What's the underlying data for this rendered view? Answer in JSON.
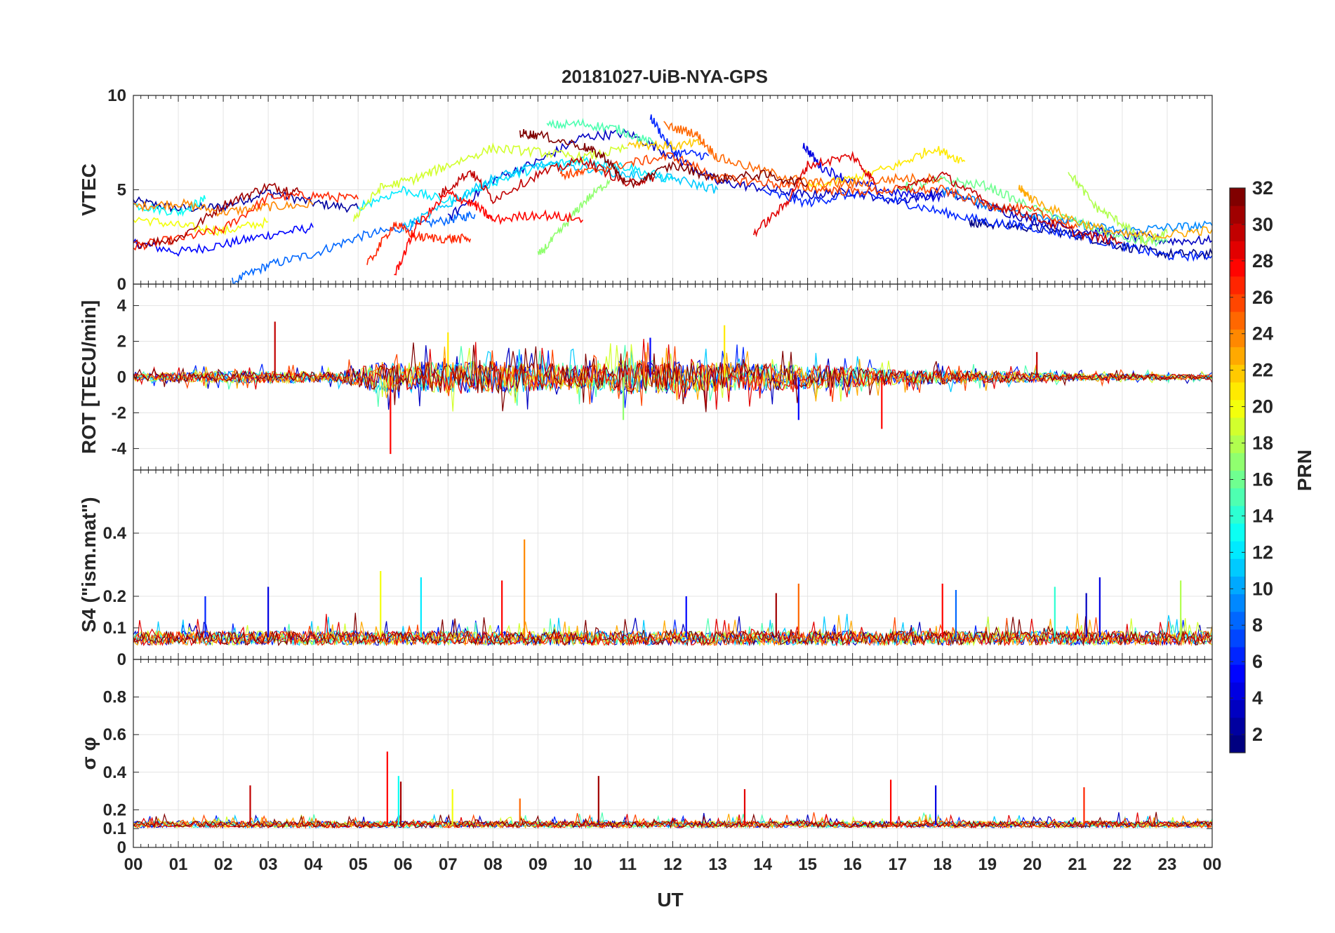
{
  "chart_data": {
    "type": "line",
    "title": "20181027-UiB-NYA-GPS",
    "xlabel": "UT",
    "xlim": [
      0,
      24
    ],
    "x_tick_labels": [
      "00",
      "01",
      "02",
      "03",
      "04",
      "05",
      "06",
      "07",
      "08",
      "09",
      "10",
      "11",
      "12",
      "13",
      "14",
      "15",
      "16",
      "17",
      "18",
      "19",
      "20",
      "21",
      "22",
      "23",
      "00"
    ],
    "grid": true,
    "colorbar": {
      "label": "PRN",
      "range": [
        1,
        32
      ],
      "ticks": [
        "2",
        "4",
        "6",
        "8",
        "10",
        "12",
        "14",
        "16",
        "18",
        "20",
        "22",
        "24",
        "26",
        "28",
        "30",
        "32"
      ],
      "colormap": [
        "#00008f",
        "#0000ff",
        "#0080ff",
        "#00ffff",
        "#80ff80",
        "#ffff00",
        "#ff8000",
        "#ff0000",
        "#800000"
      ]
    },
    "panels": [
      {
        "ylabel": "VTEC",
        "ylim": [
          0,
          10
        ],
        "ytick_values": [
          0,
          5,
          10
        ],
        "ytick_labels": [
          "0",
          "5",
          "10"
        ],
        "series_note": "VTEC tracks for GPS satellites, colored by PRN",
        "tracks": [
          {
            "prn": 2,
            "t": [
              0,
              1,
              2,
              3,
              4,
              5
            ],
            "y": [
              4.4,
              4.0,
              4.1,
              4.9,
              4.3,
              4.0
            ]
          },
          {
            "prn": 5,
            "t": [
              0,
              1,
              2,
              3,
              4
            ],
            "y": [
              2.2,
              1.7,
              2.1,
              2.6,
              3.0
            ]
          },
          {
            "prn": 8,
            "t": [
              2.2,
              3,
              4,
              5,
              6,
              7,
              7.6
            ],
            "y": [
              0.1,
              1.0,
              1.6,
              2.5,
              3.0,
              3.4,
              3.7
            ]
          },
          {
            "prn": 13,
            "t": [
              0,
              1,
              1.6
            ],
            "y": [
              4.2,
              3.8,
              4.5
            ]
          },
          {
            "prn": 20,
            "t": [
              0,
              1,
              2,
              3
            ],
            "y": [
              3.5,
              3.1,
              2.8,
              3.3
            ]
          },
          {
            "prn": 24,
            "t": [
              0,
              1,
              2,
              3,
              4
            ],
            "y": [
              4.1,
              4.3,
              3.8,
              4.1,
              4.2
            ]
          },
          {
            "prn": 27,
            "t": [
              0,
              1,
              2,
              3,
              4,
              5
            ],
            "y": [
              2.0,
              2.4,
              2.9,
              4.6,
              4.7,
              4.5
            ]
          },
          {
            "prn": 31,
            "t": [
              0,
              1,
              2,
              3,
              3.7
            ],
            "y": [
              2.1,
              2.4,
              4.2,
              5.2,
              4.9
            ]
          },
          {
            "prn": 1,
            "t": [
              18.6,
              19,
              20,
              21,
              22,
              23,
              24
            ],
            "y": [
              3.3,
              3.2,
              3.0,
              2.6,
              2.0,
              1.6,
              1.6
            ]
          },
          {
            "prn": 3,
            "t": [
              7,
              8,
              9,
              10,
              11,
              12,
              13,
              14,
              15,
              16,
              17,
              18,
              19,
              20,
              21,
              22,
              23,
              24
            ],
            "y": [
              3.5,
              5.5,
              6.5,
              7.8,
              8.0,
              6.8,
              5.4,
              5.1,
              4.7,
              4.9,
              4.4,
              4.9,
              4.1,
              3.4,
              2.9,
              2.6,
              2.3,
              2.3
            ]
          },
          {
            "prn": 6,
            "t": [
              11.5,
              12,
              12.8
            ],
            "y": [
              8.9,
              7.0,
              6.8
            ]
          },
          {
            "prn": 6,
            "t": [
              14,
              15,
              16,
              17,
              18,
              19,
              20,
              21,
              22,
              23,
              24
            ],
            "y": [
              4.9,
              4.3,
              4.8,
              4.4,
              3.8,
              3.3,
              3.0,
              2.6,
              2.0,
              1.5,
              1.5
            ]
          },
          {
            "prn": 4,
            "t": [
              14.9,
              15.3,
              16,
              17,
              18
            ],
            "y": [
              7.4,
              6.2,
              5.4,
              4.8,
              4.6
            ]
          },
          {
            "prn": 9,
            "t": [
              18,
              19,
              20,
              21,
              22,
              23,
              24
            ],
            "y": [
              5.0,
              4.2,
              3.7,
              3.2,
              2.8,
              3.0,
              3.1
            ]
          },
          {
            "prn": 12,
            "t": [
              5,
              6,
              7,
              8,
              9,
              10,
              11,
              12
            ],
            "y": [
              4.1,
              5.0,
              4.4,
              5.4,
              6.2,
              6.6,
              6.2,
              5.5
            ]
          },
          {
            "prn": 11,
            "t": [
              6,
              7,
              8,
              9,
              10,
              11,
              12,
              13
            ],
            "y": [
              3.0,
              4.2,
              5.6,
              6.3,
              6.2,
              5.8,
              5.6,
              5.0
            ]
          },
          {
            "prn": 15,
            "t": [
              9.2,
              10,
              10.8,
              11.6
            ],
            "y": [
              8.4,
              8.5,
              8.2,
              7.4
            ]
          },
          {
            "prn": 16,
            "t": [
              17,
              18,
              19,
              20,
              21,
              22,
              23
            ],
            "y": [
              5.1,
              5.5,
              5.2,
              4.0,
              3.3,
              2.4,
              2.2
            ]
          },
          {
            "prn": 17,
            "t": [
              9,
              9.5,
              10,
              10.6
            ],
            "y": [
              1.5,
              2.8,
              4.3,
              5.5
            ]
          },
          {
            "prn": 18,
            "t": [
              20.8,
              21.4,
              22,
              22.5,
              23
            ],
            "y": [
              6.0,
              4.1,
              3.2,
              2.2,
              2.7
            ]
          },
          {
            "prn": 19,
            "t": [
              4.9,
              5.5,
              6.3,
              7,
              8,
              9,
              10,
              11
            ],
            "y": [
              3.5,
              5.1,
              5.6,
              6.3,
              7.2,
              7.0,
              6.7,
              7.2
            ]
          },
          {
            "prn": 21,
            "t": [
              15,
              16,
              17,
              17.8,
              18.5
            ],
            "y": [
              5.1,
              5.6,
              6.3,
              7.2,
              6.5
            ]
          },
          {
            "prn": 22,
            "t": [
              11,
              12,
              12.7
            ],
            "y": [
              7.5,
              7.3,
              7.5
            ]
          },
          {
            "prn": 23,
            "t": [
              19.7,
              20,
              21,
              22,
              23,
              24
            ],
            "y": [
              5.1,
              4.5,
              3.3,
              2.6,
              2.6,
              2.9
            ]
          },
          {
            "prn": 25,
            "t": [
              11.8,
              12.5,
              13,
              14,
              15,
              16,
              17,
              18
            ],
            "y": [
              8.4,
              8.0,
              6.7,
              6.0,
              5.4,
              5.3,
              5.6,
              5.6
            ]
          },
          {
            "prn": 26,
            "t": [
              9.5,
              10,
              11,
              12,
              13,
              14,
              15,
              16,
              17,
              18,
              19,
              20,
              21
            ],
            "y": [
              5.8,
              5.9,
              6.4,
              6.8,
              5.6,
              5.4,
              5.1,
              4.9,
              5.0,
              5.0,
              4.2,
              3.9,
              3.0
            ]
          },
          {
            "prn": 27,
            "t": [
              5.2,
              5.8,
              6.3,
              7,
              7.5
            ],
            "y": [
              1.0,
              3.2,
              2.5,
              2.4,
              2.4
            ]
          },
          {
            "prn": 28,
            "t": [
              5.8,
              6.3,
              7,
              7.6,
              8,
              9,
              10
            ],
            "y": [
              0.4,
              3.1,
              4.8,
              4.2,
              3.4,
              3.7,
              3.4
            ]
          },
          {
            "prn": 29,
            "t": [
              13.8,
              14.5,
              15,
              16,
              16.5
            ],
            "y": [
              2.7,
              4.2,
              6.3,
              6.8,
              5.4
            ]
          },
          {
            "prn": 30,
            "t": [
              6.8,
              7.5,
              8,
              9,
              10,
              11,
              11.6
            ],
            "y": [
              4.7,
              6.0,
              4.5,
              5.8,
              6.6,
              5.3,
              5.7
            ]
          },
          {
            "prn": 30,
            "t": [
              17,
              18,
              19,
              20,
              21,
              22
            ],
            "y": [
              5.0,
              5.8,
              4.3,
              3.6,
              2.7,
              2.2
            ]
          },
          {
            "prn": 32,
            "t": [
              8.6,
              9,
              10,
              10.5,
              11,
              12,
              13,
              14,
              15
            ],
            "y": [
              8.0,
              7.9,
              7.3,
              6.7,
              5.2,
              6.3,
              5.6,
              5.8,
              5.3
            ]
          }
        ]
      },
      {
        "ylabel": "ROT [TECU/min]",
        "ylim": [
          -5.2,
          5.2
        ],
        "ytick_values": [
          -4,
          -2,
          0,
          2,
          4
        ],
        "ytick_labels": [
          "-4",
          "-2",
          "0",
          "2",
          "4"
        ],
        "series_note": "Rate of TEC noise around zero",
        "envelope": [
          {
            "t": 0,
            "amp": 0.3
          },
          {
            "t": 2.5,
            "amp": 0.5
          },
          {
            "t": 4.5,
            "amp": 0.4
          },
          {
            "t": 5.5,
            "amp": 1.2
          },
          {
            "t": 8,
            "amp": 1.3
          },
          {
            "t": 10,
            "amp": 1.0
          },
          {
            "t": 11,
            "amp": 1.4
          },
          {
            "t": 13,
            "amp": 1.2
          },
          {
            "t": 15,
            "amp": 1.0
          },
          {
            "t": 17,
            "amp": 0.6
          },
          {
            "t": 19,
            "amp": 0.5
          },
          {
            "t": 21,
            "amp": 0.3
          },
          {
            "t": 24,
            "amp": 0.2
          }
        ],
        "spikes": [
          {
            "t": 3.15,
            "y": 3.1,
            "prn": 30
          },
          {
            "t": 5.72,
            "y": -4.3,
            "prn": 28
          },
          {
            "t": 13.15,
            "y": 2.9,
            "prn": 21
          },
          {
            "t": 16.65,
            "y": -2.9,
            "prn": 28
          },
          {
            "t": 14.8,
            "y": -2.4,
            "prn": 5
          },
          {
            "t": 11.5,
            "y": 2.2,
            "prn": 5
          },
          {
            "t": 20.1,
            "y": 1.4,
            "prn": 30
          },
          {
            "t": 10.9,
            "y": -2.4,
            "prn": 17
          },
          {
            "t": 7.0,
            "y": 2.5,
            "prn": 21
          }
        ]
      },
      {
        "ylabel": "S4 (\"ism.mat\")",
        "ylim": [
          0,
          0.6
        ],
        "ytick_values": [
          0,
          0.1,
          0.2,
          0.4
        ],
        "ytick_labels": [
          "0",
          "0.1",
          "0.2",
          "0.4"
        ],
        "series_note": "S4 scintillation index, baseline ~0.05-0.1",
        "spikes": [
          {
            "t": 3.0,
            "y": 0.23,
            "prn": 4
          },
          {
            "t": 5.5,
            "y": 0.28,
            "prn": 20
          },
          {
            "t": 6.4,
            "y": 0.26,
            "prn": 12
          },
          {
            "t": 8.2,
            "y": 0.25,
            "prn": 28
          },
          {
            "t": 8.7,
            "y": 0.38,
            "prn": 24
          },
          {
            "t": 12.3,
            "y": 0.2,
            "prn": 5
          },
          {
            "t": 14.3,
            "y": 0.21,
            "prn": 31
          },
          {
            "t": 14.8,
            "y": 0.24,
            "prn": 25
          },
          {
            "t": 18.0,
            "y": 0.24,
            "prn": 28
          },
          {
            "t": 18.3,
            "y": 0.22,
            "prn": 8
          },
          {
            "t": 21.2,
            "y": 0.21,
            "prn": 3
          },
          {
            "t": 21.5,
            "y": 0.26,
            "prn": 4
          },
          {
            "t": 23.3,
            "y": 0.25,
            "prn": 18
          },
          {
            "t": 1.6,
            "y": 0.2,
            "prn": 6
          },
          {
            "t": 20.5,
            "y": 0.23,
            "prn": 14
          }
        ]
      },
      {
        "ylabel": "σ φ",
        "ylim": [
          0,
          1
        ],
        "ytick_values": [
          0,
          0.1,
          0.2,
          0.4,
          0.6,
          0.8
        ],
        "ytick_labels": [
          "0",
          "0.1",
          "0.2",
          "0.4",
          "0.6",
          "0.8"
        ],
        "series_note": "Phase scintillation index, baseline ~0.12",
        "spikes": [
          {
            "t": 2.6,
            "y": 0.33,
            "prn": 30
          },
          {
            "t": 5.65,
            "y": 0.51,
            "prn": 28
          },
          {
            "t": 5.9,
            "y": 0.38,
            "prn": 13
          },
          {
            "t": 5.95,
            "y": 0.35,
            "prn": 31
          },
          {
            "t": 7.1,
            "y": 0.31,
            "prn": 20
          },
          {
            "t": 10.35,
            "y": 0.38,
            "prn": 31
          },
          {
            "t": 13.6,
            "y": 0.31,
            "prn": 29
          },
          {
            "t": 16.85,
            "y": 0.36,
            "prn": 28
          },
          {
            "t": 17.85,
            "y": 0.33,
            "prn": 4
          },
          {
            "t": 21.15,
            "y": 0.32,
            "prn": 27
          },
          {
            "t": 8.6,
            "y": 0.26,
            "prn": 25
          }
        ]
      }
    ]
  }
}
